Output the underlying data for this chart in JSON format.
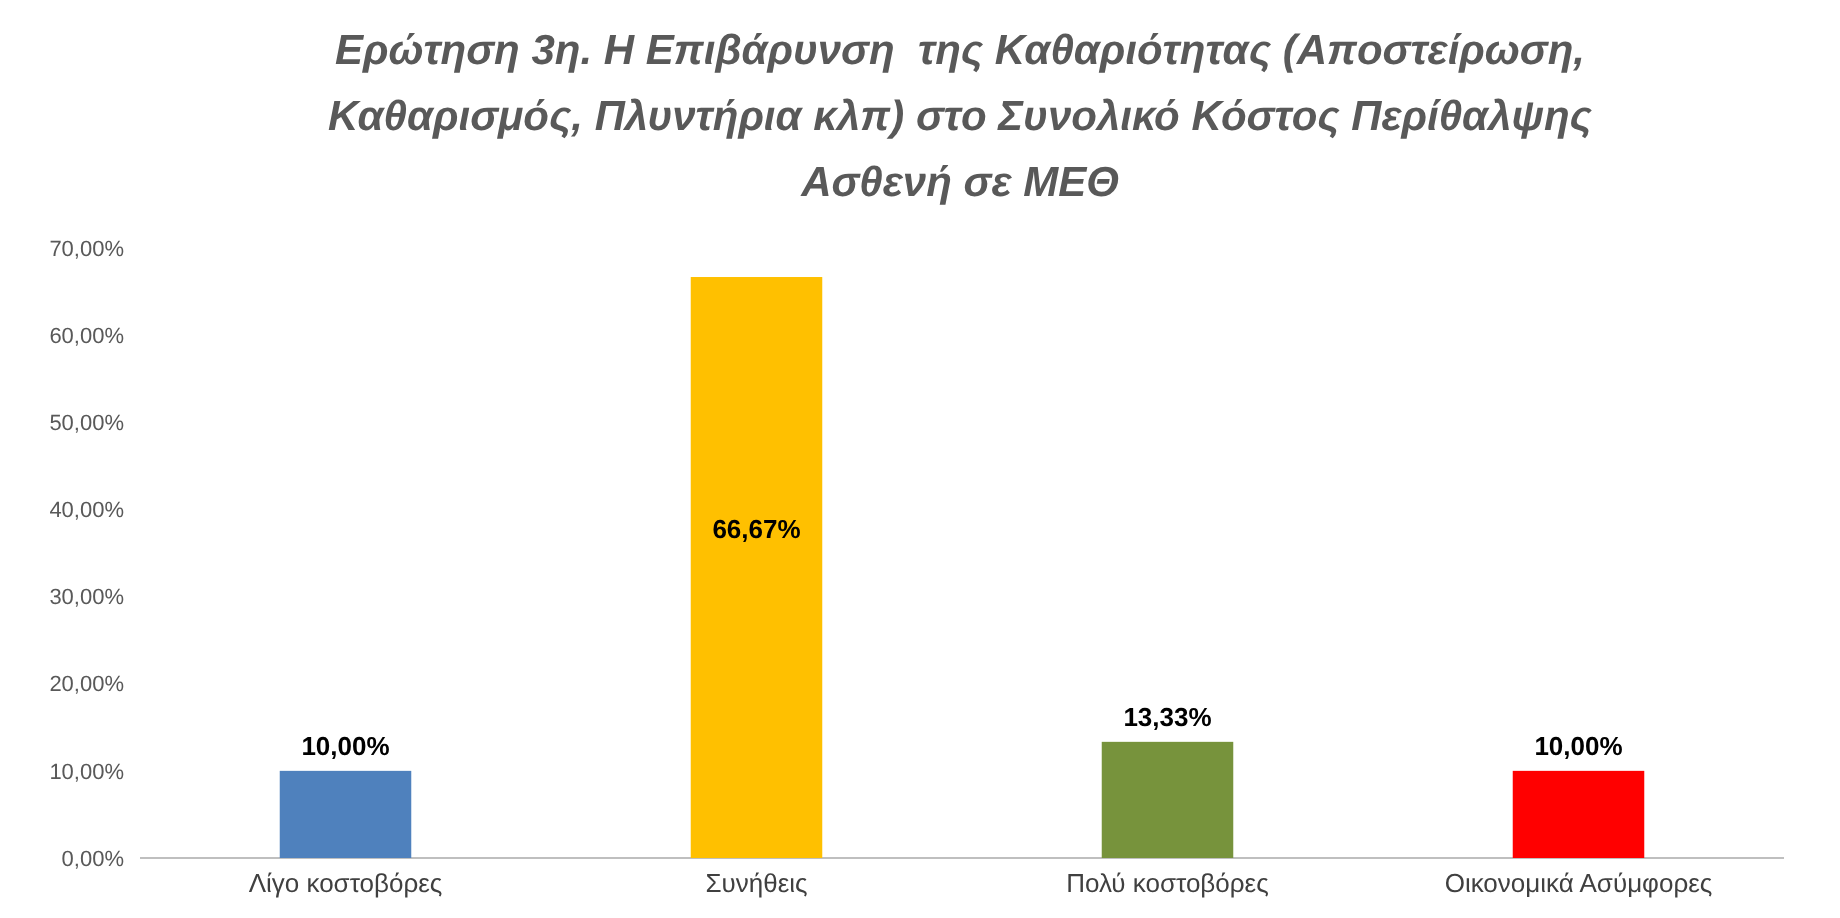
{
  "chart_data": {
    "type": "bar",
    "title": "Ερώτηση 3η. Η Επιβάρυνση  της Καθαριότητας (Αποστείρωση, Καθαρισμός, Πλυντήρια κλπ) στο Συνολικό Κόστος Περίθαλψης Ασθενή σε ΜΕΘ",
    "categories": [
      "Λίγο κοστοβόρες",
      "Συνήθεις",
      "Πολύ κοστοβόρες",
      "Οικονομικά Ασύμφορες"
    ],
    "values": [
      10,
      66.67,
      13.33,
      10
    ],
    "colors": [
      "#4f81bd",
      "#ffc000",
      "#77933c",
      "#ff0000"
    ],
    "value_labels": [
      "10,00%",
      "66,67%",
      "13,33%",
      "10,00%"
    ],
    "ylim": [
      0,
      70
    ],
    "yticks": [
      {
        "value": 0,
        "label": "0,00%"
      },
      {
        "value": 10,
        "label": "10,00%"
      },
      {
        "value": 20,
        "label": "20,00%"
      },
      {
        "value": 30,
        "label": "30,00%"
      },
      {
        "value": 40,
        "label": "40,00%"
      },
      {
        "value": 50,
        "label": "50,00%"
      },
      {
        "value": 60,
        "label": "60,00%"
      },
      {
        "value": 70,
        "label": "70,00%"
      }
    ],
    "grid": false
  }
}
